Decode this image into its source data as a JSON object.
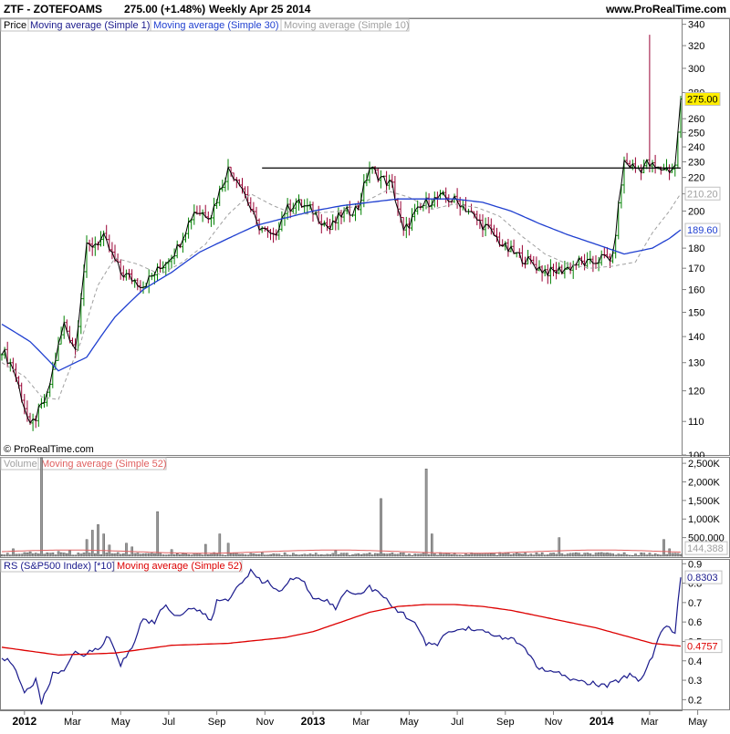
{
  "header": {
    "title": "ZTF - ZOTEFOAMS",
    "price_info": "275.00 (+1.48%)",
    "period_info": "Weekly  Apr 25 2014",
    "site": "www.ProRealTime.com"
  },
  "watermark": "© ProRealTime.com",
  "colors": {
    "up_bar": "#008000",
    "down_bar": "#990033",
    "ma1": "#000000",
    "ma30": "#1f3fd0",
    "ma10": "#a0a0a0",
    "volume_bar": "#999999",
    "vol_ma": "#e06060",
    "rs_line": "#1a1a8c",
    "rs_ma": "#dd0000",
    "current_price_bg": "#ffee00"
  },
  "chart_data": [
    {
      "type": "line",
      "panel": "price",
      "legend": [
        "Price",
        "Moving average (Simple 1)",
        "Moving average (Simple 30)",
        "Moving average (Simple 10)"
      ],
      "scale": "log",
      "ylim": [
        100,
        345
      ],
      "y_ticks": [
        100,
        110,
        120,
        130,
        140,
        150,
        160,
        170,
        180,
        200,
        210,
        220,
        230,
        240,
        250,
        260,
        280,
        300,
        320,
        340
      ],
      "x_labels": [
        "2012",
        "Mar",
        "May",
        "Jul",
        "Sep",
        "Nov",
        "2013",
        "Mar",
        "May",
        "Jul",
        "Sep",
        "Nov",
        "2014",
        "Mar",
        "May"
      ],
      "x_label_weeks": [
        8,
        25,
        42,
        59,
        76,
        93,
        110,
        127,
        144,
        161,
        178,
        195,
        212,
        229,
        246
      ],
      "resistance_level": 226,
      "resistance_weeks": [
        92,
        240
      ],
      "price_anchors": {
        "weeks": [
          0,
          4,
          10,
          16,
          22,
          26,
          30,
          36,
          42,
          50,
          56,
          62,
          68,
          74,
          80,
          84,
          90,
          96,
          100,
          104,
          110,
          116,
          120,
          126,
          130,
          134,
          138,
          142,
          146,
          150,
          156,
          162,
          168,
          172,
          178,
          184,
          188,
          190,
          194,
          200,
          204,
          208,
          212,
          216,
          220,
          224,
          226,
          228,
          230,
          232,
          234,
          236,
          238,
          240
        ],
        "values": [
          135,
          128,
          108,
          118,
          145,
          135,
          180,
          185,
          168,
          162,
          170,
          180,
          200,
          198,
          225,
          218,
          193,
          185,
          200,
          205,
          200,
          190,
          198,
          202,
          226,
          220,
          215,
          188,
          198,
          205,
          208,
          205,
          195,
          190,
          180,
          175,
          172,
          170,
          168,
          170,
          173,
          172,
          175,
          175,
          230,
          226,
          226,
          229,
          227,
          225,
          226,
          225,
          227,
          275
        ]
      },
      "spike_high_week": 229,
      "spike_high": 330,
      "ma30_anchors": {
        "weeks": [
          0,
          10,
          20,
          30,
          40,
          50,
          60,
          70,
          80,
          90,
          100,
          110,
          120,
          130,
          140,
          150,
          160,
          170,
          180,
          190,
          200,
          210,
          220,
          230,
          236,
          240
        ],
        "values": [
          145,
          138,
          127,
          132,
          148,
          160,
          168,
          178,
          185,
          192,
          196,
          200,
          203,
          205,
          207,
          207,
          207,
          205,
          200,
          193,
          187,
          182,
          177,
          180,
          185,
          189.6
        ]
      },
      "ma10_anchors": {
        "weeks": [
          0,
          8,
          14,
          20,
          28,
          34,
          40,
          48,
          56,
          64,
          72,
          80,
          88,
          96,
          104,
          112,
          120,
          128,
          136,
          144,
          152,
          160,
          168,
          176,
          184,
          192,
          200,
          208,
          216,
          224,
          230,
          236,
          240
        ],
        "values": [
          130,
          125,
          118,
          117,
          138,
          162,
          175,
          172,
          167,
          173,
          182,
          198,
          210,
          203,
          198,
          199,
          200,
          205,
          212,
          208,
          201,
          204,
          202,
          197,
          186,
          177,
          172,
          170,
          171,
          173,
          188,
          200,
          210.2
        ]
      },
      "current_price": "275.00",
      "ma10_last": "210.20",
      "ma30_last": "189.60"
    },
    {
      "type": "bar",
      "panel": "volume",
      "legend": [
        "Volume",
        "Moving average (Simple 52)"
      ],
      "ylim": [
        0,
        2650000
      ],
      "y_tick_labels": [
        "500,000",
        "1,000K",
        "1,500K",
        "2,000K",
        "2,500K"
      ],
      "y_tick_values": [
        500000,
        1000000,
        1500000,
        2000000,
        2500000
      ],
      "baseline": 50000,
      "spikes": {
        "weeks": [
          4,
          10,
          14,
          20,
          24,
          30,
          32,
          34,
          36,
          38,
          44,
          46,
          55,
          60,
          72,
          77,
          80,
          118,
          134,
          150,
          152,
          197,
          234,
          236
        ],
        "values": [
          200000,
          120000,
          2700000,
          130000,
          150000,
          450000,
          700000,
          850000,
          600000,
          300000,
          350000,
          250000,
          1200000,
          180000,
          320000,
          600000,
          350000,
          150000,
          1550000,
          2350000,
          600000,
          500000,
          450000,
          200000
        ]
      },
      "ma_level": 144388,
      "ma_last_label": "144,388"
    },
    {
      "type": "line",
      "panel": "relative_strength",
      "legend": [
        "RS (S&P500 Index) [*10]",
        "Moving average (Simple 52)"
      ],
      "ylim": [
        0.15,
        0.92
      ],
      "y_ticks": [
        0.2,
        0.3,
        0.4,
        0.5,
        0.6,
        0.7,
        0.8,
        0.9
      ],
      "rs_anchors": {
        "weeks": [
          0,
          4,
          8,
          12,
          14,
          18,
          22,
          26,
          28,
          30,
          34,
          38,
          42,
          46,
          50,
          54,
          56,
          58,
          62,
          66,
          70,
          74,
          76,
          80,
          84,
          88,
          92,
          94,
          98,
          102,
          106,
          110,
          114,
          118,
          122,
          126,
          130,
          134,
          138,
          142,
          146,
          150,
          154,
          158,
          162,
          166,
          170,
          174,
          178,
          182,
          186,
          190,
          194,
          198,
          202,
          206,
          210,
          214,
          218,
          222,
          226,
          230,
          234,
          236,
          238,
          240
        ],
        "values": [
          0.42,
          0.38,
          0.24,
          0.3,
          0.18,
          0.33,
          0.36,
          0.44,
          0.43,
          0.44,
          0.46,
          0.53,
          0.38,
          0.47,
          0.62,
          0.59,
          0.67,
          0.68,
          0.63,
          0.67,
          0.66,
          0.6,
          0.71,
          0.71,
          0.8,
          0.86,
          0.8,
          0.81,
          0.75,
          0.82,
          0.82,
          0.73,
          0.72,
          0.67,
          0.77,
          0.74,
          0.78,
          0.74,
          0.68,
          0.64,
          0.6,
          0.48,
          0.49,
          0.55,
          0.56,
          0.57,
          0.55,
          0.53,
          0.52,
          0.5,
          0.44,
          0.36,
          0.34,
          0.33,
          0.3,
          0.29,
          0.28,
          0.27,
          0.3,
          0.33,
          0.3,
          0.43,
          0.58,
          0.57,
          0.55,
          0.83
        ]
      },
      "ma_anchors": {
        "weeks": [
          0,
          20,
          40,
          60,
          80,
          100,
          110,
          120,
          130,
          140,
          150,
          160,
          170,
          180,
          190,
          200,
          210,
          220,
          230,
          240
        ],
        "values": [
          0.47,
          0.43,
          0.44,
          0.48,
          0.49,
          0.52,
          0.55,
          0.6,
          0.65,
          0.68,
          0.69,
          0.69,
          0.68,
          0.66,
          0.63,
          0.6,
          0.57,
          0.53,
          0.49,
          0.4757
        ]
      },
      "rs_last": "0.8303",
      "ma_last": "0.4757"
    }
  ]
}
